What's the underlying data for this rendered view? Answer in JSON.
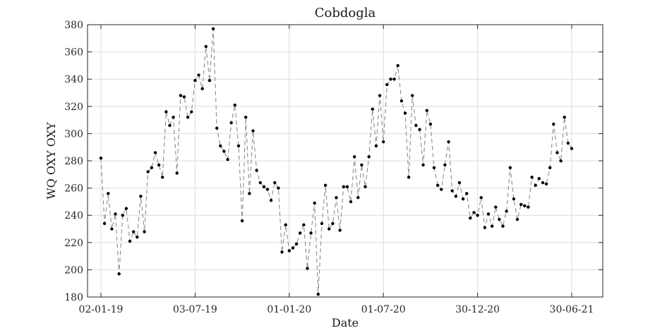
{
  "chart_data": {
    "type": "line",
    "title": "Cobdogla",
    "xlabel": "Date",
    "ylabel": "WQ OXY OXY",
    "ylim": [
      180,
      380
    ],
    "yticks": [
      "180",
      "200",
      "220",
      "240",
      "260",
      "280",
      "300",
      "320",
      "340",
      "360",
      "380"
    ],
    "xticks": [
      "02-01-19",
      "03-07-19",
      "01-01-20",
      "01-07-20",
      "30-12-20",
      "30-06-21"
    ],
    "grid": true,
    "line_style": "dashed",
    "line_color": "#8c8c8c",
    "marker_color": "#000000",
    "series": [
      {
        "x": [
          "2019-01-02",
          "2019-01-09",
          "2019-01-16",
          "2019-01-23",
          "2019-01-30",
          "2019-02-06",
          "2019-02-13",
          "2019-02-20",
          "2019-02-27",
          "2019-03-06",
          "2019-03-13",
          "2019-03-20",
          "2019-03-27",
          "2019-04-03",
          "2019-04-10",
          "2019-04-17",
          "2019-04-24",
          "2019-05-01",
          "2019-05-08",
          "2019-05-15",
          "2019-05-22",
          "2019-05-29",
          "2019-06-05",
          "2019-06-12",
          "2019-06-19",
          "2019-06-26",
          "2019-07-03",
          "2019-07-10",
          "2019-07-17",
          "2019-07-24",
          "2019-07-31",
          "2019-08-07",
          "2019-08-14",
          "2019-08-21",
          "2019-08-28",
          "2019-09-04",
          "2019-09-11",
          "2019-09-18",
          "2019-09-25",
          "2019-10-02",
          "2019-10-09",
          "2019-10-16",
          "2019-10-23",
          "2019-10-30",
          "2019-11-06",
          "2019-11-13",
          "2019-11-20",
          "2019-11-27",
          "2019-12-04",
          "2019-12-11",
          "2019-12-18",
          "2019-12-25",
          "2020-01-01",
          "2020-01-08",
          "2020-01-15",
          "2020-01-22",
          "2020-01-29",
          "2020-02-05",
          "2020-02-12",
          "2020-02-19",
          "2020-02-26",
          "2020-03-04",
          "2020-03-11",
          "2020-03-18",
          "2020-03-25",
          "2020-04-01",
          "2020-04-08",
          "2020-04-15",
          "2020-04-22",
          "2020-04-29",
          "2020-05-06",
          "2020-05-13",
          "2020-05-20",
          "2020-05-27",
          "2020-06-03",
          "2020-06-10",
          "2020-06-17",
          "2020-06-24",
          "2020-07-01",
          "2020-07-08",
          "2020-07-15",
          "2020-07-22",
          "2020-07-29",
          "2020-08-05",
          "2020-08-12",
          "2020-08-19",
          "2020-08-26",
          "2020-09-02",
          "2020-09-09",
          "2020-09-16",
          "2020-09-23",
          "2020-09-30",
          "2020-10-07",
          "2020-10-14",
          "2020-10-21",
          "2020-10-28",
          "2020-11-04",
          "2020-11-11",
          "2020-11-18",
          "2020-11-25",
          "2020-12-02",
          "2020-12-09",
          "2020-12-16",
          "2020-12-23",
          "2020-12-30",
          "2021-01-06",
          "2021-01-13",
          "2021-01-20",
          "2021-01-27",
          "2021-02-03",
          "2021-02-10",
          "2021-02-17",
          "2021-02-24",
          "2021-03-03",
          "2021-03-10",
          "2021-03-17",
          "2021-03-24",
          "2021-03-31",
          "2021-04-07",
          "2021-04-14",
          "2021-04-21",
          "2021-04-28",
          "2021-05-05",
          "2021-05-12",
          "2021-05-19",
          "2021-05-26",
          "2021-06-02",
          "2021-06-09",
          "2021-06-16",
          "2021-06-23",
          "2021-06-30"
        ],
        "y": [
          282,
          234,
          256,
          230,
          241,
          197,
          240,
          245,
          221,
          228,
          224,
          254,
          228,
          272,
          275,
          286,
          277,
          268,
          316,
          306,
          312,
          271,
          328,
          327,
          312,
          316,
          339,
          343,
          333,
          364,
          339,
          377,
          304,
          291,
          287,
          281,
          308,
          321,
          291,
          236,
          312,
          256,
          302,
          273,
          264,
          261,
          259,
          251,
          264,
          260,
          213,
          233,
          214,
          216,
          219,
          227,
          233,
          201,
          227,
          249,
          182,
          234,
          262,
          230,
          234,
          253,
          229,
          261,
          261,
          250,
          283,
          253,
          277,
          261,
          283,
          318,
          291,
          328,
          294,
          336,
          340,
          340,
          350,
          324,
          315,
          268,
          328,
          306,
          303,
          277,
          317,
          307,
          275,
          262,
          259,
          277,
          294,
          258,
          254,
          264,
          252,
          256,
          238,
          242,
          240,
          253,
          231,
          241,
          232,
          246,
          237,
          232,
          243,
          275,
          252,
          237,
          248,
          247,
          246,
          268,
          262,
          267,
          264,
          263,
          275,
          307,
          286,
          280,
          312,
          293,
          289
        ]
      }
    ]
  }
}
